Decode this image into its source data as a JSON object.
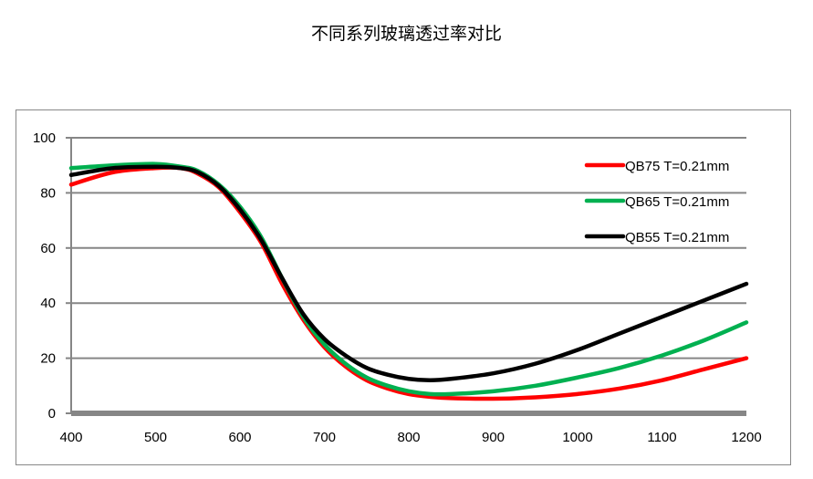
{
  "chart_data": {
    "type": "line",
    "title": "不同系列玻璃透过率对比",
    "xlabel": "",
    "ylabel": "",
    "xlim": [
      400,
      1200
    ],
    "ylim": [
      0,
      100
    ],
    "xticks": [
      400,
      500,
      600,
      700,
      800,
      900,
      1000,
      1100,
      1200
    ],
    "yticks": [
      0,
      20,
      40,
      60,
      80,
      100
    ],
    "grid": "horizontal",
    "legend_position": "top-right",
    "x": [
      400,
      450,
      500,
      530,
      550,
      575,
      600,
      625,
      650,
      675,
      700,
      725,
      750,
      775,
      800,
      825,
      850,
      900,
      950,
      1000,
      1050,
      1100,
      1150,
      1200
    ],
    "series": [
      {
        "name": "QB75 T=0.21mm",
        "color": "#ff0000",
        "values": [
          83,
          87.5,
          89,
          89,
          87,
          82,
          73,
          62,
          47,
          34,
          24,
          17,
          12,
          9,
          7,
          6,
          5.5,
          5.3,
          5.8,
          7,
          9,
          12,
          16,
          20
        ]
      },
      {
        "name": "QB65 T=0.21mm",
        "color": "#00b050",
        "values": [
          89,
          90,
          90.5,
          89.5,
          88,
          83,
          75,
          64,
          49,
          35,
          25,
          18,
          13,
          10,
          8,
          7,
          7,
          8,
          10,
          13,
          16.5,
          21,
          26.5,
          33
        ]
      },
      {
        "name": "QB55 T=0.21mm",
        "color": "#000000",
        "values": [
          86.5,
          89,
          89.5,
          89,
          87.5,
          82.5,
          74,
          63,
          49,
          36,
          27,
          21,
          16.5,
          14,
          12.5,
          12,
          12.5,
          14.5,
          18,
          23,
          29,
          35,
          41,
          47
        ]
      }
    ]
  }
}
